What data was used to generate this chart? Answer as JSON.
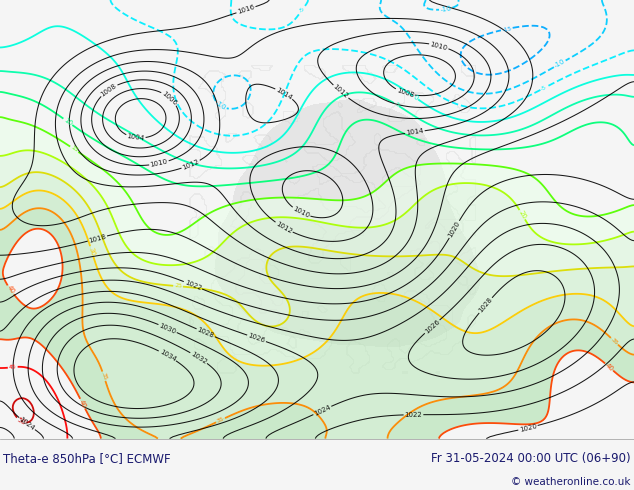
{
  "title_left": "Theta-e 850hPa [°C] ECMWF",
  "title_right": "Fr 31-05-2024 00:00 UTC (06+90)",
  "copyright": "© weatheronline.co.uk",
  "bg_color": "#f5f5f5",
  "map_bg_color": "#f8f8f8",
  "bottom_bar_color": "#e0e0e0",
  "title_color": "#1a1a6e",
  "fig_width": 6.34,
  "fig_height": 4.9,
  "dpi": 100,
  "theta_colors": {
    "-50": "#cc00ff",
    "-45": "#9900cc",
    "-40": "#6600aa",
    "-35": "#0000ff",
    "-30": "#0033cc",
    "-25": "#0055ff",
    "-20": "#0088ff",
    "-15": "#00aaff",
    "-10": "#00ccff",
    "-5": "#00eeff",
    "0": "#00ffdd",
    "5": "#00ffaa",
    "10": "#00ff77",
    "15": "#55ff00",
    "20": "#aaff00",
    "25": "#dddd00",
    "30": "#ffcc00",
    "35": "#ff8800",
    "40": "#ff4400",
    "45": "#ff0000",
    "50": "#cc0000",
    "55": "#990000",
    "60": "#ff00ff",
    "65": "#cc00cc"
  }
}
